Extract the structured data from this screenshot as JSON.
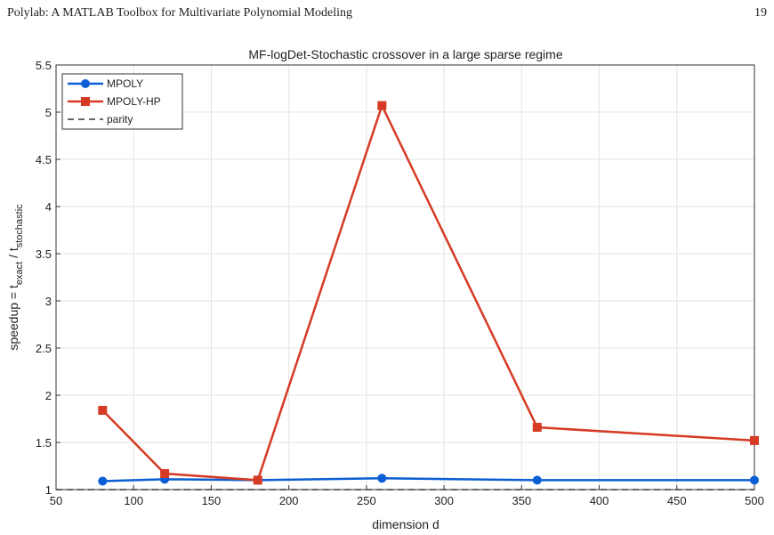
{
  "header": {
    "title": "Polylab: A MATLAB Toolbox for Multivariate Polynomial Modeling",
    "page": "19"
  },
  "chart_data": {
    "type": "line",
    "title": "MF-logDet-Stochastic crossover in a large sparse regime",
    "xlabel": "dimension d",
    "ylabel_parts": [
      "speedup = t",
      "exact",
      " / t",
      "stochastic"
    ],
    "xlim": [
      50,
      500
    ],
    "xticks": [
      50,
      100,
      150,
      200,
      250,
      300,
      350,
      400,
      450,
      500
    ],
    "ylim": [
      1,
      5.5
    ],
    "yticks": [
      1,
      1.5,
      2,
      2.5,
      3,
      3.5,
      4,
      4.5,
      5,
      5.5
    ],
    "grid": true,
    "legend": "top-left",
    "series": [
      {
        "name": "MPOLY",
        "color": "#0b5ed3",
        "marker": "circle",
        "x": [
          80,
          120,
          180,
          260,
          360,
          500
        ],
        "values": [
          1.09,
          1.11,
          1.1,
          1.12,
          1.1,
          1.1
        ]
      },
      {
        "name": "MPOLY-HP",
        "color": "#d63a24",
        "marker": "square",
        "x": [
          80,
          120,
          180,
          260,
          360,
          500
        ],
        "values": [
          1.84,
          1.17,
          1.1,
          5.07,
          1.66,
          1.52
        ]
      },
      {
        "name": "parity",
        "color": "#333333",
        "marker": "none",
        "dash": true,
        "x": [
          50,
          500
        ],
        "values": [
          1,
          1
        ]
      }
    ]
  }
}
